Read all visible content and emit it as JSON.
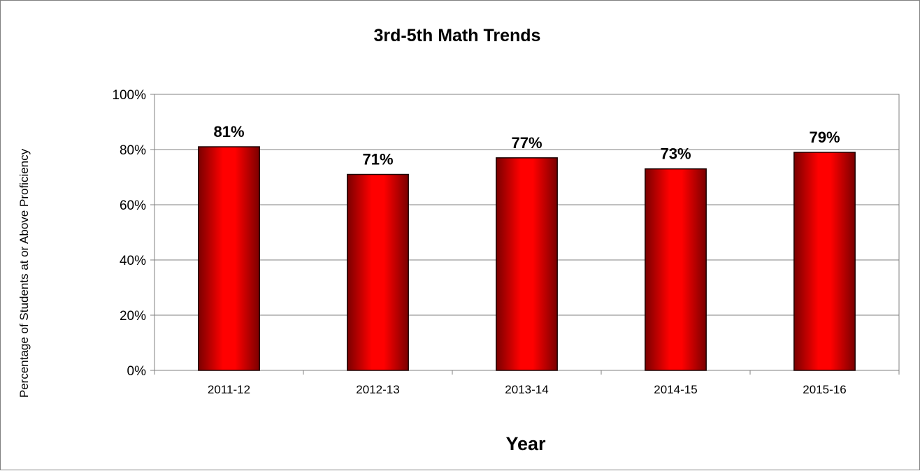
{
  "chart_data": {
    "type": "bar",
    "title": "3rd-5th Math Trends",
    "xlabel": "Year",
    "ylabel": "Percentage of Students at or Above Proficiency",
    "categories": [
      "2011-12",
      "2012-13",
      "2013-14",
      "2014-15",
      "2015-16"
    ],
    "values": [
      81,
      71,
      77,
      73,
      79
    ],
    "value_labels": [
      "81%",
      "71%",
      "77%",
      "73%",
      "79%"
    ],
    "ylim": [
      0,
      100
    ],
    "yticks": [
      0,
      20,
      40,
      60,
      80,
      100
    ],
    "ytick_labels": [
      "0%",
      "20%",
      "40%",
      "60%",
      "80%",
      "100%"
    ],
    "grid": true,
    "legend": "none",
    "bar_color": "#ff0000",
    "bar_edge_color": "#6b0000"
  }
}
